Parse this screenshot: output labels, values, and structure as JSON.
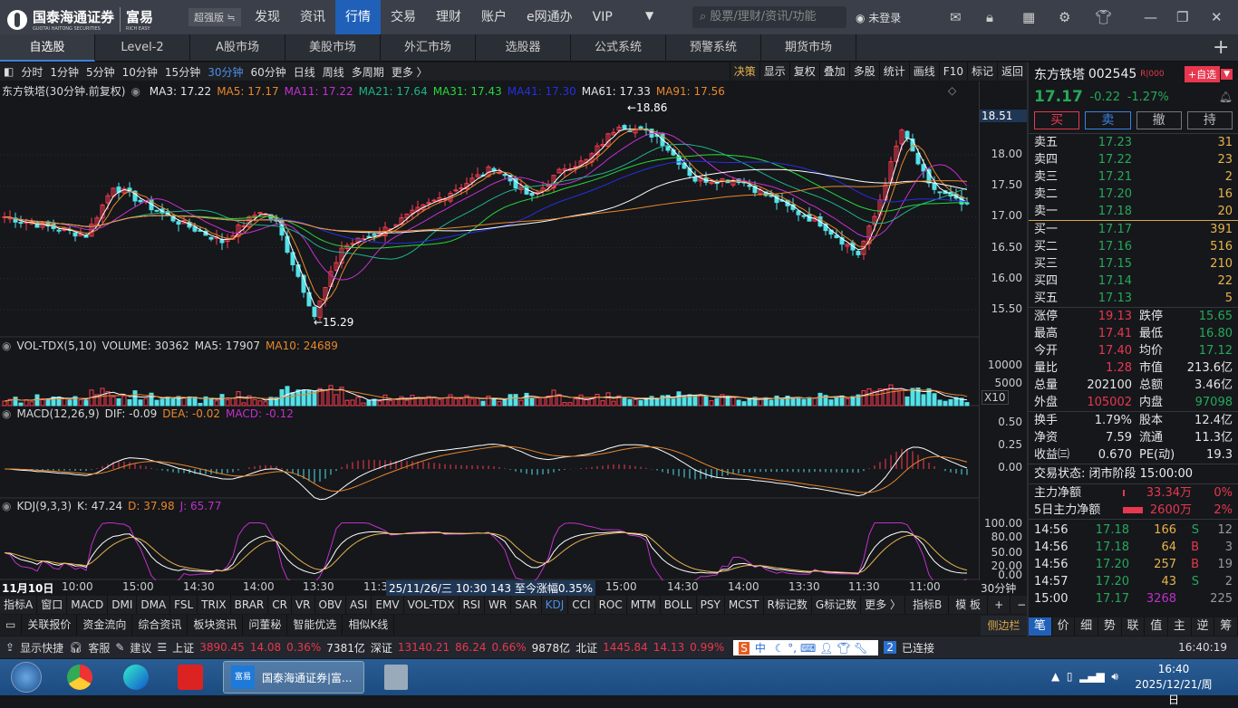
{
  "app": {
    "logo_cn": "国泰海通证券",
    "logo_en": "GUOTAI HAITONG SECURITIES",
    "brand": "富易",
    "brand_en": "RICH EASY",
    "version": "超强版 ≒"
  },
  "nav": [
    "发现",
    "资讯",
    "行情",
    "交易",
    "理财",
    "账户",
    "e网通办",
    "VIP"
  ],
  "search_placeholder": "股票/理财/资讯/功能",
  "login": "未登录",
  "tabs": [
    "自选股",
    "Level-2",
    "A股市场",
    "美股市场",
    "外汇市场",
    "选股器",
    "公式系统",
    "预警系统",
    "期货市场"
  ],
  "periods": [
    "分时",
    "1分钟",
    "5分钟",
    "10分钟",
    "15分钟",
    "30分钟",
    "60分钟",
    "日线",
    "周线",
    "多周期",
    "更多 〉"
  ],
  "tools": [
    "决策",
    "显示",
    "复权",
    "叠加",
    "多股",
    "统计",
    "画线",
    "F10",
    "标记",
    "返回"
  ],
  "main_legend": {
    "title": "东方铁塔(30分钟.前复权)",
    "ma3": "MA3: 17.22",
    "ma5": "MA5: 17.17",
    "ma11": "MA11: 17.22",
    "ma21": "MA21: 17.64",
    "ma31": "MA31: 17.43",
    "ma41": "MA41: 17.30",
    "ma61": "MA61: 17.33",
    "ma91": "MA91: 17.56"
  },
  "price_marks": {
    "high": "18.86",
    "low": "15.29",
    "current": "18.51"
  },
  "price_axis": [
    "18.00",
    "17.50",
    "17.00",
    "16.50",
    "16.00",
    "15.50"
  ],
  "vol_legend": {
    "title": "VOL-TDX(5,10)",
    "volume": "VOLUME: 30362",
    "ma5": "MA5: 17907",
    "ma10": "MA10: 24689"
  },
  "vol_axis": [
    "10000",
    "5000"
  ],
  "vol_unit": "X10",
  "macd_legend": {
    "title": "MACD(12,26,9)",
    "dif": "DIF: -0.09",
    "dea": "DEA: -0.02",
    "macd": "MACD: -0.12"
  },
  "macd_axis": [
    "0.50",
    "0.25",
    "0.00"
  ],
  "kdj_legend": {
    "title": "KDJ(9,3,3)",
    "k": "K: 47.24",
    "d": "D: 37.98",
    "j": "J: 65.77"
  },
  "kdj_axis": [
    "100.00",
    "80.00",
    "50.00",
    "20.00",
    "0.00"
  ],
  "time_axis": [
    "11月10日",
    "10:00",
    "15:00",
    "14:30",
    "14:00",
    "13:30",
    "11:30",
    "15:00",
    "14:30",
    "14:00",
    "13:30",
    "11:30",
    "11:00"
  ],
  "time_tooltip": "25/11/26/三 10:30 143 至今涨幅0.35%",
  "period_label": "30分钟",
  "indicators": [
    "指标A",
    "窗口",
    "MACD",
    "DMI",
    "DMA",
    "FSL",
    "TRIX",
    "BRAR",
    "CR",
    "VR",
    "OBV",
    "ASI",
    "EMV",
    "VOL-TDX",
    "RSI",
    "WR",
    "SAR",
    "KDJ",
    "CCI",
    "ROC",
    "MTM",
    "BOLL",
    "PSY",
    "MCST",
    "R标记数",
    "G标记数",
    "更多 〉"
  ],
  "ind_right": [
    "指标B",
    "模 板",
    "+",
    "−"
  ],
  "bottom_tabs": [
    "关联报价",
    "资金流向",
    "综合资讯",
    "板块资讯",
    "问董秘",
    "智能优选",
    "相似K线"
  ],
  "sidebar_btn": "侧边栏",
  "status": {
    "shortcut": "显示快捷",
    "service": "客服",
    "suggest": "建议",
    "sh": "上证",
    "sh_v": "3890.45",
    "sh_c": "14.08",
    "sh_p": "0.36%",
    "sh_a": "7381亿",
    "sz": "深证",
    "sz_v": "13140.21",
    "sz_c": "86.24",
    "sz_p": "0.66%",
    "sz_a": "9878亿",
    "bj": "北证",
    "bj_v": "1445.84",
    "bj_c": "14.13",
    "bj_p": "0.99%",
    "conn_n": "2",
    "conn": "已连接",
    "time": "16:40:19",
    "ime": "中"
  },
  "stock": {
    "name": "东方铁塔",
    "code": "002545",
    "tag": "R|000",
    "add": "+自选",
    "price": "17.17",
    "chg": "-0.22",
    "pct": "-1.27%"
  },
  "trade_btns": [
    "买",
    "卖",
    "撤",
    "持"
  ],
  "asks": [
    [
      "卖五",
      "17.23",
      "31"
    ],
    [
      "卖四",
      "17.22",
      "23"
    ],
    [
      "卖三",
      "17.21",
      "2"
    ],
    [
      "卖二",
      "17.20",
      "16"
    ],
    [
      "卖一",
      "17.18",
      "20"
    ]
  ],
  "bids": [
    [
      "买一",
      "17.17",
      "391"
    ],
    [
      "买二",
      "17.16",
      "516"
    ],
    [
      "买三",
      "17.15",
      "210"
    ],
    [
      "买四",
      "17.14",
      "22"
    ],
    [
      "买五",
      "17.13",
      "5"
    ]
  ],
  "quote": [
    [
      "涨停",
      "19.13",
      "跌停",
      "15.65"
    ],
    [
      "最高",
      "17.41",
      "最低",
      "16.80"
    ],
    [
      "今开",
      "17.40",
      "均价",
      "17.12"
    ],
    [
      "量比",
      "1.28",
      "市值",
      "213.6亿"
    ],
    [
      "总量",
      "202100",
      "总额",
      "3.46亿"
    ],
    [
      "外盘",
      "105002",
      "内盘",
      "97098"
    ]
  ],
  "fund": [
    [
      "换手",
      "1.79%",
      "股本",
      "12.4亿"
    ],
    [
      "净资",
      "7.59",
      "流通",
      "11.3亿"
    ],
    [
      "收益㈢",
      "0.670",
      "PE(动)",
      "19.3"
    ]
  ],
  "trade_status": "交易状态: 闭市阶段 15:00:00",
  "flow": [
    [
      "主力净额",
      "33.34万",
      "0%"
    ],
    [
      "5日主力净额",
      "2600万",
      "2%"
    ]
  ],
  "ticks": [
    [
      "14:56",
      "17.18",
      "166",
      "S",
      "12"
    ],
    [
      "14:56",
      "17.18",
      "64",
      "B",
      "3"
    ],
    [
      "14:56",
      "17.20",
      "257",
      "B",
      "19"
    ],
    [
      "14:57",
      "17.20",
      "43",
      "S",
      "2"
    ],
    [
      "15:00",
      "17.17",
      "3268",
      "",
      "225"
    ]
  ],
  "right_tabs": [
    "笔",
    "价",
    "细",
    "势",
    "联",
    "值",
    "主",
    "逆",
    "筹"
  ],
  "taskbar": {
    "app": "国泰海通证券|富...",
    "clock": "16:40",
    "date": "2025/12/21/周日"
  },
  "chart_data": {
    "type": "candlestick",
    "price_path": [
      [
        0,
        17.0
      ],
      [
        15,
        16.7
      ],
      [
        20,
        17.5
      ],
      [
        30,
        17.0
      ],
      [
        40,
        16.6
      ],
      [
        47,
        17.1
      ],
      [
        50,
        16.9
      ],
      [
        57,
        15.4
      ],
      [
        62,
        16.5
      ],
      [
        70,
        16.8
      ],
      [
        80,
        17.3
      ],
      [
        90,
        17.8
      ],
      [
        97,
        17.3
      ],
      [
        103,
        17.8
      ],
      [
        107,
        17.9
      ],
      [
        113,
        18.5
      ],
      [
        120,
        18.3
      ],
      [
        127,
        17.6
      ],
      [
        135,
        17.6
      ],
      [
        145,
        17.1
      ],
      [
        150,
        16.9
      ],
      [
        157,
        16.4
      ],
      [
        160,
        17.0
      ],
      [
        165,
        18.4
      ],
      [
        170,
        17.5
      ],
      [
        177,
        17.15
      ]
    ],
    "ylim": [
      15.2,
      18.9
    ],
    "colors": {
      "up": "#ff3b4f",
      "down": "#54e1e8"
    }
  }
}
